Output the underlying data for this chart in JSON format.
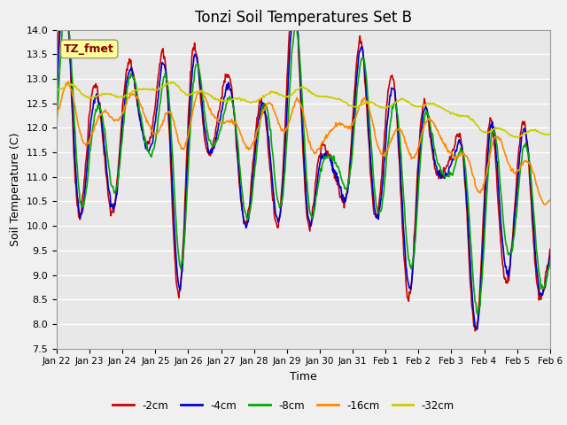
{
  "title": "Tonzi Soil Temperatures Set B",
  "xlabel": "Time",
  "ylabel": "Soil Temperature (C)",
  "ylim": [
    7.5,
    14.0
  ],
  "yticks": [
    7.5,
    8.0,
    8.5,
    9.0,
    9.5,
    10.0,
    10.5,
    11.0,
    11.5,
    12.0,
    12.5,
    13.0,
    13.5,
    14.0
  ],
  "xtick_labels": [
    "Jan 22",
    "Jan 23",
    "Jan 24",
    "Jan 25",
    "Jan 26",
    "Jan 27",
    "Jan 28",
    "Jan 29",
    "Jan 30",
    "Jan 31",
    "Feb 1",
    "Feb 2",
    "Feb 3",
    "Feb 4",
    "Feb 5",
    "Feb 6"
  ],
  "colors": {
    "-2cm": "#cc0000",
    "-4cm": "#0000cc",
    "-8cm": "#00aa00",
    "-16cm": "#ff8800",
    "-32cm": "#cccc00"
  },
  "legend_labels": [
    "-2cm",
    "-4cm",
    "-8cm",
    "-16cm",
    "-32cm"
  ],
  "annotation_text": "TZ_fmet",
  "annotation_color": "#880000",
  "annotation_bg": "#ffff99",
  "background_color": "#e8e8e8",
  "grid_color": "#ffffff",
  "title_fontsize": 12,
  "axis_fontsize": 9,
  "tick_fontsize": 8,
  "linewidth": 1.2,
  "n_points": 768
}
